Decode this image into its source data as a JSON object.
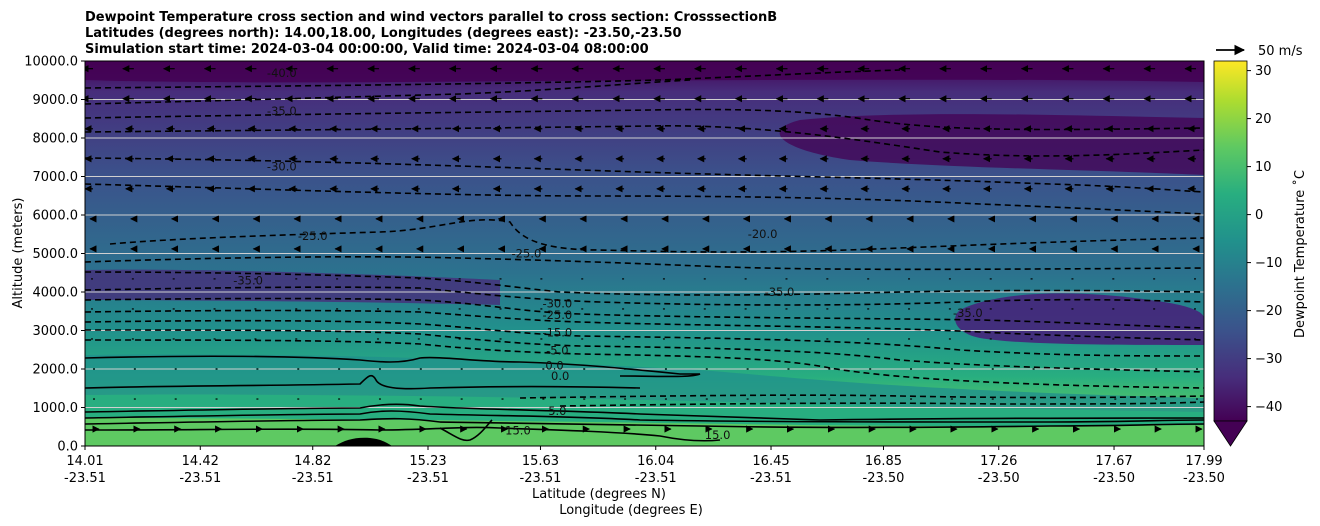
{
  "chart_data": {
    "type": "heatmap",
    "title_lines": [
      "Dewpoint Temperature cross section and wind vectors parallel to cross section: CrosssectionB",
      "Latitudes (degrees north): 14.00,18.00, Longitudes (degrees east): -23.50,-23.50",
      "Simulation start time: 2024-03-04 00:00:00, Valid time: 2024-03-04 08:00:00"
    ],
    "xlabel_lat": "Latitude (degrees N)",
    "xlabel_lon": "Longitude (degrees E)",
    "ylabel": "Altitude (meters)",
    "ylim": [
      0,
      10000
    ],
    "xlim": [
      14.01,
      17.99
    ],
    "x_ticks": [
      {
        "lat": "14.01",
        "lon": "-23.51",
        "x": 14.01
      },
      {
        "lat": "14.42",
        "lon": "-23.51",
        "x": 14.42
      },
      {
        "lat": "14.82",
        "lon": "-23.51",
        "x": 14.82
      },
      {
        "lat": "15.23",
        "lon": "-23.51",
        "x": 15.23
      },
      {
        "lat": "15.63",
        "lon": "-23.51",
        "x": 15.63
      },
      {
        "lat": "16.04",
        "lon": "-23.51",
        "x": 16.04
      },
      {
        "lat": "16.45",
        "lon": "-23.51",
        "x": 16.45
      },
      {
        "lat": "16.85",
        "lon": "-23.50",
        "x": 16.85
      },
      {
        "lat": "17.26",
        "lon": "-23.50",
        "x": 17.26
      },
      {
        "lat": "17.67",
        "lon": "-23.50",
        "x": 17.67
      },
      {
        "lat": "17.99",
        "lon": "-23.50",
        "x": 17.99
      }
    ],
    "y_ticks": [
      {
        "label": "0.0",
        "v": 0
      },
      {
        "label": "1000.0",
        "v": 1000
      },
      {
        "label": "2000.0",
        "v": 2000
      },
      {
        "label": "3000.0",
        "v": 3000
      },
      {
        "label": "4000.0",
        "v": 4000
      },
      {
        "label": "5000.0",
        "v": 5000
      },
      {
        "label": "6000.0",
        "v": 6000
      },
      {
        "label": "7000.0",
        "v": 7000
      },
      {
        "label": "8000.0",
        "v": 8000
      },
      {
        "label": "9000.0",
        "v": 9000
      },
      {
        "label": "10000.0",
        "v": 10000
      }
    ],
    "grid": "horizontal",
    "colorbar": {
      "label": "Dewpoint Temperature $^\\circ$C",
      "label_text": "Dewpoint Temperature ˚C",
      "min": -43,
      "max": 32,
      "extend": "min",
      "ticks": [
        {
          "label": "30",
          "v": 30
        },
        {
          "label": "20",
          "v": 20
        },
        {
          "label": "10",
          "v": 10
        },
        {
          "label": "0",
          "v": 0
        },
        {
          "label": "−10",
          "v": -10
        },
        {
          "label": "−20",
          "v": -20
        },
        {
          "label": "−30",
          "v": -30
        },
        {
          "label": "−40",
          "v": -40
        }
      ],
      "colors": {
        "c_m43": "#440154",
        "c_m35": "#472d7b",
        "c_m30": "#3b528b",
        "c_m25": "#2c728e",
        "c_m20": "#21918c",
        "c_m10": "#28ae80",
        "c_0": "#5ec962",
        "c_10": "#addc30",
        "c_32": "#fde725"
      }
    },
    "quiver_key": {
      "label": "50 m/s"
    },
    "contour_labels": [
      {
        "text": "-40.0",
        "x": 14.71,
        "y": 9580
      },
      {
        "text": "-35.0",
        "x": 14.71,
        "y": 8600
      },
      {
        "text": "-30.0",
        "x": 14.71,
        "y": 7150
      },
      {
        "text": "-25.0",
        "x": 14.82,
        "y": 5350
      },
      {
        "text": "-20.0",
        "x": 16.42,
        "y": 5400
      },
      {
        "text": "-25.0",
        "x": 15.58,
        "y": 4900
      },
      {
        "text": "-30.0",
        "x": 15.69,
        "y": 3600
      },
      {
        "text": "-25.0",
        "x": 15.69,
        "y": 3300
      },
      {
        "text": "-15.0",
        "x": 15.69,
        "y": 2840
      },
      {
        "text": "-5.0",
        "x": 15.69,
        "y": 2380
      },
      {
        "text": "0.0",
        "x": 15.68,
        "y": 1990
      },
      {
        "text": "0.0",
        "x": 15.7,
        "y": 1720
      },
      {
        "text": "5.0",
        "x": 15.69,
        "y": 800
      },
      {
        "text": "15.0",
        "x": 15.55,
        "y": 300
      },
      {
        "text": "15.0",
        "x": 16.26,
        "y": 180
      },
      {
        "text": "-35.0",
        "x": 17.15,
        "y": 3350
      },
      {
        "text": "-35.0",
        "x": 16.48,
        "y": 3900
      },
      {
        "text": "-35.0",
        "x": 14.59,
        "y": 4200
      }
    ]
  }
}
